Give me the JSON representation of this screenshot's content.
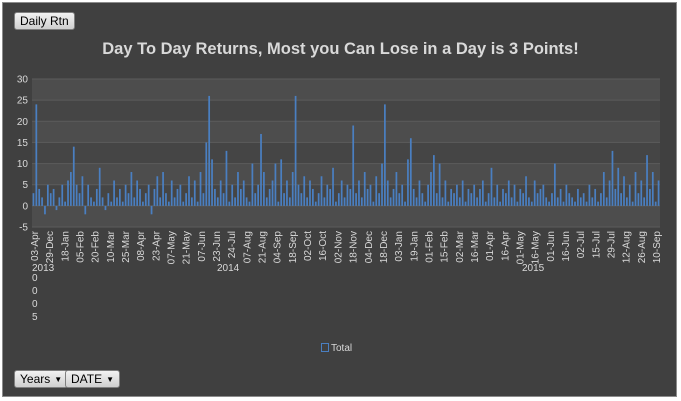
{
  "buttons": {
    "field_button": "Daily Rtn",
    "axis_field_1": "Years",
    "axis_field_2": "DATE"
  },
  "chart_data": {
    "type": "bar",
    "title": "Day To Day Returns, Most you Can Lose in a Day is 3 Points!",
    "ylim": [
      -5,
      30
    ],
    "yticks": [
      -5,
      0,
      5,
      10,
      15,
      20,
      25,
      30
    ],
    "grid": true,
    "legend_position": "bottom",
    "series": [
      {
        "name": "Total",
        "color": "#4a7fc1",
        "values": [
          3,
          24,
          4,
          2,
          -2,
          5,
          3,
          4,
          -1,
          2,
          5,
          1,
          6,
          8,
          14,
          5,
          3,
          7,
          -2,
          5,
          2,
          1,
          4,
          9,
          2,
          -1,
          3,
          1,
          6,
          2,
          4,
          1,
          5,
          3,
          8,
          2,
          6,
          4,
          1,
          3,
          5,
          -2,
          4,
          7,
          2,
          8,
          3,
          1,
          6,
          2,
          4,
          5,
          1,
          3,
          7,
          2,
          6,
          1,
          8,
          3,
          15,
          26,
          11,
          4,
          2,
          6,
          3,
          13,
          1,
          5,
          2,
          8,
          4,
          6,
          2,
          1,
          10,
          3,
          5,
          17,
          8,
          2,
          4,
          6,
          10,
          1,
          11,
          3,
          6,
          2,
          8,
          26,
          5,
          3,
          7,
          2,
          6,
          4,
          1,
          3,
          7,
          2,
          5,
          4,
          9,
          1,
          3,
          6,
          2,
          5,
          4,
          19,
          3,
          6,
          2,
          8,
          4,
          5,
          1,
          7,
          3,
          10,
          24,
          6,
          2,
          4,
          8,
          3,
          5,
          1,
          11,
          16,
          4,
          2,
          6,
          3,
          1,
          5,
          8,
          12,
          3,
          10,
          2,
          6,
          1,
          4,
          3,
          5,
          2,
          6,
          1,
          4,
          3,
          5,
          2,
          4,
          6,
          1,
          3,
          9,
          2,
          5,
          1,
          4,
          3,
          6,
          2,
          5,
          1,
          4,
          3,
          7,
          2,
          1,
          6,
          3,
          4,
          5,
          2,
          1,
          3,
          10,
          2,
          4,
          1,
          5,
          3,
          2,
          1,
          4,
          2,
          3,
          1,
          5,
          2,
          4,
          1,
          3,
          8,
          2,
          6,
          13,
          4,
          9,
          3,
          7,
          2,
          5,
          1,
          8,
          3,
          6,
          2,
          12,
          4,
          8,
          1,
          6
        ]
      }
    ],
    "x_tick_labels": [
      "03-Apr",
      "29-Dec",
      "18-Jan",
      "05-Feb",
      "20-Feb",
      "10-Mar",
      "25-Mar",
      "08-Apr",
      "23-Apr",
      "07-May",
      "21-May",
      "07-Jun",
      "23-Jun",
      "24-Jul",
      "07-Aug",
      "21-Aug",
      "04-Sep",
      "18-Sep",
      "02-Oct",
      "16-Oct",
      "02-Nov",
      "18-Nov",
      "04-Dec",
      "18-Dec",
      "03-Jan",
      "19-Jan",
      "01-Feb",
      "15-Feb",
      "02-Mar",
      "16-Mar",
      "01-Apr",
      "16-Apr",
      "01-May",
      "16-May",
      "01-Jun",
      "16-Jun",
      "02-Jul",
      "15-Jul",
      "29-Jul",
      "12-Aug",
      "26-Aug",
      "10-Sep"
    ],
    "year_labels": [
      "2013",
      "2014",
      "2015"
    ],
    "stray_label": [
      "0",
      "0",
      "0",
      "5"
    ]
  }
}
